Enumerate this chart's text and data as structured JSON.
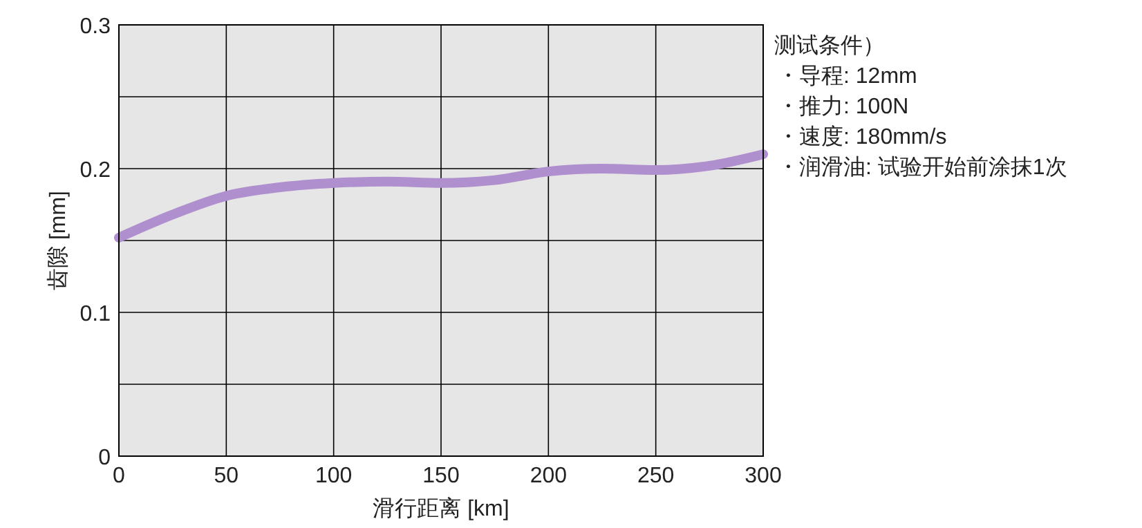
{
  "chart_data": {
    "type": "line",
    "xlabel": "滑行距离 [km]",
    "ylabel": "齿隙 [mm]",
    "x": [
      0,
      25,
      50,
      75,
      100,
      125,
      150,
      175,
      200,
      225,
      250,
      275,
      300
    ],
    "series": [
      {
        "color": "#b08fcf",
        "values": [
          0.152,
          0.168,
          0.181,
          0.187,
          0.19,
          0.191,
          0.19,
          0.192,
          0.198,
          0.2,
          0.199,
          0.202,
          0.21
        ]
      }
    ],
    "xlim": [
      0,
      300
    ],
    "xticks": [
      0,
      50,
      100,
      150,
      200,
      250,
      300
    ],
    "ylim": [
      0,
      0.3
    ],
    "yticks": [
      0,
      {
        "value": 0.05,
        "label": null
      },
      0.1,
      {
        "value": 0.15,
        "label": null
      },
      0.2,
      {
        "value": 0.25,
        "label": null
      },
      0.3
    ],
    "grid": true,
    "marker": "none",
    "line_style": "solid",
    "annotations": [
      "测试条件）",
      "・导程: 12mm",
      "・推力: 100N",
      "・速度: 180mm/s",
      "・润滑油: 试验开始前涂抹1次"
    ]
  }
}
